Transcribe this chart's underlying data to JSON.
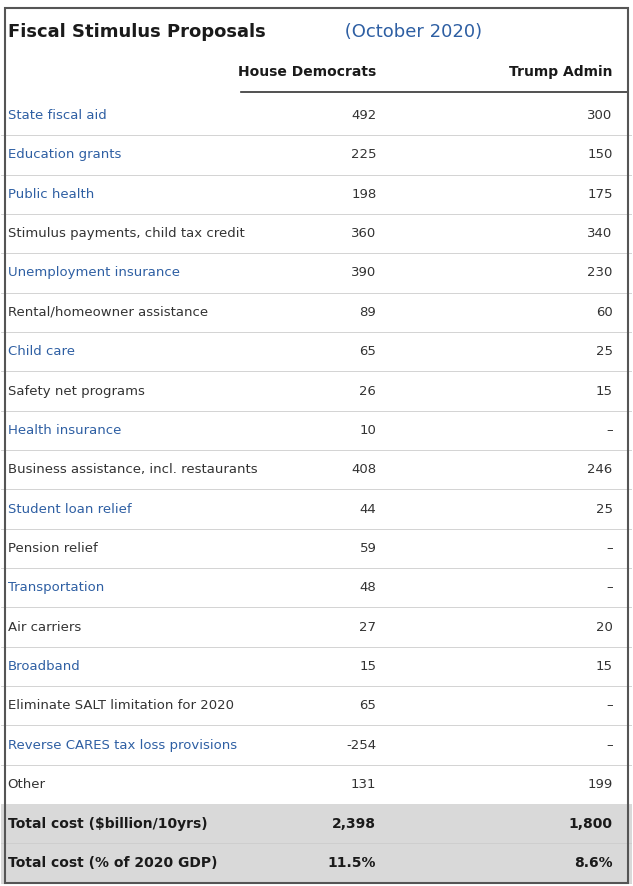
{
  "title_bold": "Fiscal Stimulus Proposals",
  "title_normal": " (October 2020)",
  "col_headers": [
    "House Democrats",
    "Trump Admin"
  ],
  "rows": [
    {
      "label": "State fiscal aid",
      "blue": true,
      "dem": "492",
      "trump": "300"
    },
    {
      "label": "Education grants",
      "blue": true,
      "dem": "225",
      "trump": "150"
    },
    {
      "label": "Public health",
      "blue": true,
      "dem": "198",
      "trump": "175"
    },
    {
      "label": "Stimulus payments, child tax credit",
      "blue": false,
      "dem": "360",
      "trump": "340"
    },
    {
      "label": "Unemployment insurance",
      "blue": true,
      "dem": "390",
      "trump": "230"
    },
    {
      "label": "Rental/homeowner assistance",
      "blue": false,
      "dem": "89",
      "trump": "60"
    },
    {
      "label": "Child care",
      "blue": true,
      "dem": "65",
      "trump": "25"
    },
    {
      "label": "Safety net programs",
      "blue": false,
      "dem": "26",
      "trump": "15"
    },
    {
      "label": "Health insurance",
      "blue": true,
      "dem": "10",
      "trump": "–"
    },
    {
      "label": "Business assistance, incl. restaurants",
      "blue": false,
      "dem": "408",
      "trump": "246"
    },
    {
      "label": "Student loan relief",
      "blue": true,
      "dem": "44",
      "trump": "25"
    },
    {
      "label": "Pension relief",
      "blue": false,
      "dem": "59",
      "trump": "–"
    },
    {
      "label": "Transportation",
      "blue": true,
      "dem": "48",
      "trump": "–"
    },
    {
      "label": "Air carriers",
      "blue": false,
      "dem": "27",
      "trump": "20"
    },
    {
      "label": "Broadband",
      "blue": true,
      "dem": "15",
      "trump": "15"
    },
    {
      "label": "Eliminate SALT limitation for 2020",
      "blue": false,
      "dem": "65",
      "trump": "–"
    },
    {
      "label": "Reverse CARES tax loss provisions",
      "blue": true,
      "dem": "-254",
      "trump": "–"
    },
    {
      "label": "Other",
      "blue": false,
      "dem": "131",
      "trump": "199"
    }
  ],
  "totals": [
    {
      "label": "Total cost ($billion/10yrs)",
      "dem": "2,398",
      "trump": "1,800"
    },
    {
      "label": "Total cost (% of 2020 GDP)",
      "dem": "11.5%",
      "trump": "8.6%"
    }
  ],
  "blue_color": "#2E5FA3",
  "label_color_blue": "#2E5FA3",
  "label_color_dark": "#333333",
  "header_line_color": "#333333",
  "row_line_color": "#cccccc",
  "total_bg_color": "#d9d9d9",
  "bg_color": "#ffffff",
  "value_color": "#333333"
}
